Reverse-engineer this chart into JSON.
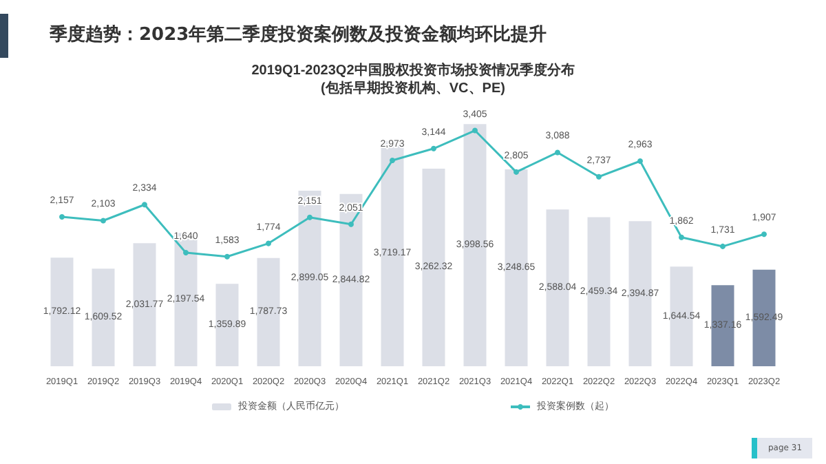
{
  "chart_data": {
    "type": "bar",
    "title": "季度趋势：2023年第二季度投资案例数及投资金额均环比提升",
    "subtitle": "2019Q1-2023Q2中国股权投资市场投资情况季度分布\n(包括早期投资机构、VC、PE)",
    "categories": [
      "2019Q1",
      "2019Q2",
      "2019Q3",
      "2019Q4",
      "2020Q1",
      "2020Q2",
      "2020Q3",
      "2020Q4",
      "2021Q1",
      "2021Q2",
      "2021Q3",
      "2021Q4",
      "2022Q1",
      "2022Q2",
      "2022Q3",
      "2022Q4",
      "2023Q1",
      "2023Q2"
    ],
    "series": [
      {
        "name": "投资金额（人民币亿元）",
        "color": "#dcdfe7",
        "colors": [
          "#dcdfe7",
          "#dcdfe7",
          "#dcdfe7",
          "#dcdfe7",
          "#dcdfe7",
          "#dcdfe7",
          "#dcdfe7",
          "#dcdfe7",
          "#dcdfe7",
          "#dcdfe7",
          "#dcdfe7",
          "#dcdfe7",
          "#dcdfe7",
          "#dcdfe7",
          "#dcdfe7",
          "#dcdfe7",
          "#7d8ca6",
          "#7d8ca6"
        ],
        "values": [
          1792.12,
          1609.52,
          2031.77,
          2197.54,
          1359.89,
          1787.73,
          2899.05,
          2844.82,
          3719.17,
          3262.32,
          3998.56,
          3248.65,
          2588.04,
          2459.34,
          2394.87,
          1644.54,
          1337.16,
          1592.49
        ],
        "value_labels": [
          "1,792.12",
          "1,609.52",
          "2,031.77",
          "2,197.54",
          "1,359.89",
          "1,787.73",
          "2,899.05",
          "2,844.82",
          "3,719.17",
          "3,262.32",
          "3,998.56",
          "3,248.65",
          "2,588.04",
          "2,459.34",
          "2,394.87",
          "1,644.54",
          "1,337.16",
          "1,592.49"
        ]
      },
      {
        "name": "投资案例数（起）",
        "type": "line",
        "axis": "y2",
        "color": "#3dbdbd",
        "values": [
          2157,
          2103,
          2334,
          1640,
          1583,
          1774,
          2151,
          2051,
          2973,
          3144,
          3405,
          2805,
          3088,
          2737,
          2963,
          1862,
          1731,
          1907
        ],
        "value_labels": [
          "2,157",
          "2,103",
          "2,334",
          "1,640",
          "1,583",
          "1,774",
          "2,151",
          "2,051",
          "2,973",
          "3,144",
          "3,405",
          "2,805",
          "3,088",
          "2,737",
          "2,963",
          "1,862",
          "1,731",
          "1,907"
        ]
      }
    ],
    "marker": "circle",
    "legend": "bottom",
    "annotations": [
      "page 31"
    ]
  }
}
